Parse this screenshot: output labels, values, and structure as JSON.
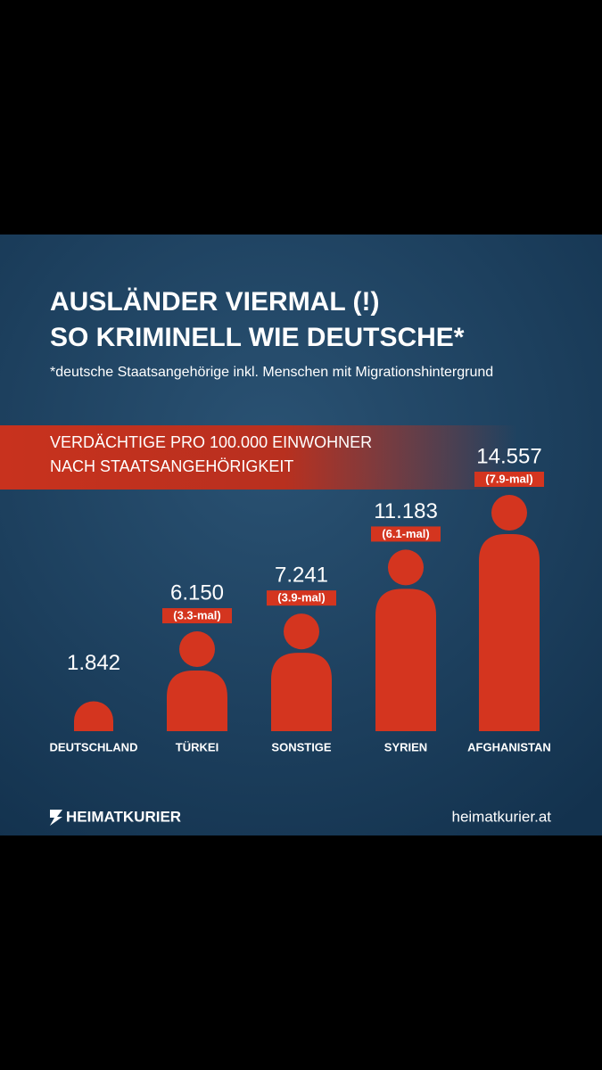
{
  "chart_data": {
    "type": "bar",
    "title_lines": [
      "AUSLÄNDER VIERMAL (!)",
      "SO KRIMINELL WIE DEUTSCHE*"
    ],
    "subtitle": "*deutsche Staatsangehörige inkl. Menschen mit Migrationshintergrund",
    "banner_lines": [
      "VERDÄCHTIGE PRO 100.000 EINWOHNER",
      "NACH STAATSANGEHÖRIGKEIT"
    ],
    "categories": [
      "DEUTSCHLAND",
      "TÜRKEI",
      "SONSTIGE",
      "SYRIEN",
      "AFGHANISTAN"
    ],
    "values": [
      1842,
      6150,
      7241,
      11183,
      14557
    ],
    "value_labels": [
      "1.842",
      "6.150",
      "7.241",
      "11.183",
      "14.557"
    ],
    "multipliers": [
      null,
      "(3.3-mal)",
      "(3.9-mal)",
      "(6.1-mal)",
      "(7.9-mal)"
    ],
    "color": "#d4351f",
    "brand": "HEIMATKURIER",
    "url": "heimatkurier.at"
  }
}
